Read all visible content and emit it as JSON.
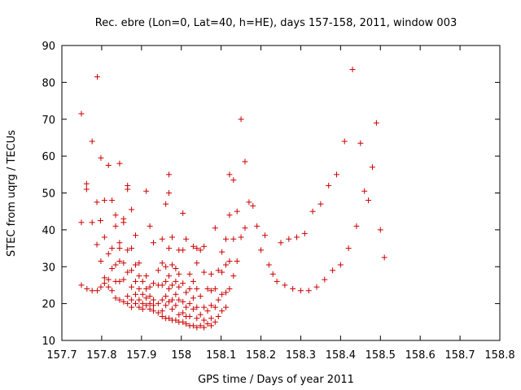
{
  "chart_data": {
    "type": "scatter",
    "title": "Rec. ebre (Lon=0, Lat=40, h=HE), days 157-158, 2011, window 003",
    "xlabel": "GPS time / Days of year 2011",
    "ylabel": "STEC from uqrg / TECUs",
    "xlim": [
      157.7,
      158.8
    ],
    "ylim": [
      10,
      90
    ],
    "xticks": [
      "157.7",
      "157.8",
      "157.9",
      "158",
      "158.1",
      "158.2",
      "158.3",
      "158.4",
      "158.5",
      "158.6",
      "158.7",
      "158.8"
    ],
    "yticks": [
      "10",
      "20",
      "30",
      "40",
      "50",
      "60",
      "70",
      "80",
      "90"
    ],
    "grid": false,
    "marker": "+",
    "marker_color": "#cc0000",
    "points": [
      [
        157.749,
        71.5
      ],
      [
        157.749,
        42.0
      ],
      [
        157.749,
        25.0
      ],
      [
        157.762,
        52.5
      ],
      [
        157.762,
        51.0
      ],
      [
        157.763,
        24.0
      ],
      [
        157.776,
        64.0
      ],
      [
        157.776,
        42.0
      ],
      [
        157.776,
        23.5
      ],
      [
        157.789,
        81.5
      ],
      [
        157.788,
        47.5
      ],
      [
        157.788,
        36.0
      ],
      [
        157.789,
        23.5
      ],
      [
        157.798,
        59.5
      ],
      [
        157.797,
        42.5
      ],
      [
        157.798,
        31.5
      ],
      [
        157.798,
        24.5
      ],
      [
        157.807,
        48.0
      ],
      [
        157.807,
        38.0
      ],
      [
        157.807,
        27.0
      ],
      [
        157.807,
        25.5
      ],
      [
        157.817,
        57.5
      ],
      [
        157.817,
        33.5
      ],
      [
        157.817,
        26.5
      ],
      [
        157.817,
        24.5
      ],
      [
        157.826,
        48.0
      ],
      [
        157.826,
        35.0
      ],
      [
        157.826,
        29.5
      ],
      [
        157.826,
        23.5
      ],
      [
        157.835,
        44.0
      ],
      [
        157.835,
        41.0
      ],
      [
        157.835,
        30.5
      ],
      [
        157.835,
        26.0
      ],
      [
        157.835,
        21.5
      ],
      [
        157.845,
        58.0
      ],
      [
        157.845,
        36.5
      ],
      [
        157.845,
        35.0
      ],
      [
        157.845,
        31.5
      ],
      [
        157.845,
        26.0
      ],
      [
        157.845,
        21.0
      ],
      [
        157.855,
        43.0
      ],
      [
        157.855,
        42.0
      ],
      [
        157.855,
        31.0
      ],
      [
        157.855,
        26.5
      ],
      [
        157.855,
        20.5
      ],
      [
        157.865,
        52.0
      ],
      [
        157.865,
        51.0
      ],
      [
        157.865,
        34.5
      ],
      [
        157.865,
        28.5
      ],
      [
        157.865,
        22.0
      ],
      [
        157.865,
        20.0
      ],
      [
        157.875,
        45.5
      ],
      [
        157.875,
        35.0
      ],
      [
        157.875,
        29.0
      ],
      [
        157.875,
        24.5
      ],
      [
        157.875,
        21.0
      ],
      [
        157.875,
        19.0
      ],
      [
        157.885,
        38.5
      ],
      [
        157.885,
        30.5
      ],
      [
        157.885,
        26.0
      ],
      [
        157.885,
        22.5
      ],
      [
        157.885,
        20.0
      ],
      [
        157.894,
        31.0
      ],
      [
        157.894,
        27.5
      ],
      [
        157.894,
        24.0
      ],
      [
        157.894,
        21.0
      ],
      [
        157.894,
        19.0
      ],
      [
        157.903,
        26.0
      ],
      [
        157.903,
        22.5
      ],
      [
        157.903,
        20.0
      ],
      [
        157.903,
        18.5
      ],
      [
        157.912,
        50.5
      ],
      [
        157.912,
        27.5
      ],
      [
        157.912,
        24.0
      ],
      [
        157.912,
        21.5
      ],
      [
        157.912,
        19.5
      ],
      [
        157.921,
        41.0
      ],
      [
        157.921,
        24.5
      ],
      [
        157.921,
        22.0
      ],
      [
        157.921,
        20.0
      ],
      [
        157.921,
        18.5
      ],
      [
        157.93,
        36.5
      ],
      [
        157.93,
        25.5
      ],
      [
        157.93,
        21.0
      ],
      [
        157.93,
        19.5
      ],
      [
        157.93,
        18.0
      ],
      [
        157.942,
        29.0
      ],
      [
        157.942,
        25.0
      ],
      [
        157.942,
        20.0
      ],
      [
        157.942,
        17.5
      ],
      [
        157.952,
        37.5
      ],
      [
        157.952,
        31.0
      ],
      [
        157.952,
        25.0
      ],
      [
        157.952,
        21.0
      ],
      [
        157.952,
        18.0
      ],
      [
        157.952,
        16.5
      ],
      [
        157.961,
        47.0
      ],
      [
        157.961,
        30.0
      ],
      [
        157.961,
        26.0
      ],
      [
        157.961,
        22.0
      ],
      [
        157.961,
        19.5
      ],
      [
        157.961,
        16.0
      ],
      [
        157.969,
        55.0
      ],
      [
        157.969,
        50.0
      ],
      [
        157.969,
        35.0
      ],
      [
        157.969,
        27.5
      ],
      [
        157.969,
        24.0
      ],
      [
        157.969,
        20.5
      ],
      [
        157.969,
        16.0
      ],
      [
        157.977,
        38.0
      ],
      [
        157.977,
        30.5
      ],
      [
        157.977,
        25.0
      ],
      [
        157.977,
        21.0
      ],
      [
        157.977,
        18.5
      ],
      [
        157.977,
        15.5
      ],
      [
        157.986,
        29.5
      ],
      [
        157.986,
        26.0
      ],
      [
        157.986,
        22.5
      ],
      [
        157.986,
        19.5
      ],
      [
        157.986,
        15.5
      ],
      [
        157.994,
        34.5
      ],
      [
        157.994,
        28.0
      ],
      [
        157.994,
        24.5
      ],
      [
        157.994,
        21.0
      ],
      [
        157.994,
        17.0
      ],
      [
        157.994,
        15.0
      ],
      [
        158.004,
        44.5
      ],
      [
        158.004,
        34.5
      ],
      [
        158.004,
        25.5
      ],
      [
        158.004,
        20.5
      ],
      [
        158.004,
        17.5
      ],
      [
        158.004,
        15.0
      ],
      [
        158.012,
        37.5
      ],
      [
        158.012,
        23.0
      ],
      [
        158.012,
        19.0
      ],
      [
        158.012,
        16.5
      ],
      [
        158.012,
        14.5
      ],
      [
        158.021,
        28.0
      ],
      [
        158.021,
        24.0
      ],
      [
        158.021,
        20.0
      ],
      [
        158.021,
        16.5
      ],
      [
        158.021,
        14.0
      ],
      [
        158.03,
        35.5
      ],
      [
        158.03,
        26.0
      ],
      [
        158.03,
        21.5
      ],
      [
        158.03,
        18.5
      ],
      [
        158.03,
        14.0
      ],
      [
        158.039,
        35.0
      ],
      [
        158.039,
        31.0
      ],
      [
        158.039,
        24.0
      ],
      [
        158.039,
        19.0
      ],
      [
        158.039,
        16.0
      ],
      [
        158.039,
        13.5
      ],
      [
        158.048,
        34.5
      ],
      [
        158.048,
        22.0
      ],
      [
        158.048,
        17.0
      ],
      [
        158.048,
        14.0
      ],
      [
        158.057,
        35.5
      ],
      [
        158.057,
        28.5
      ],
      [
        158.057,
        19.0
      ],
      [
        158.057,
        15.5
      ],
      [
        158.057,
        13.5
      ],
      [
        158.066,
        24.0
      ],
      [
        158.066,
        18.0
      ],
      [
        158.066,
        14.5
      ],
      [
        158.075,
        28.0
      ],
      [
        158.075,
        23.5
      ],
      [
        158.075,
        19.5
      ],
      [
        158.075,
        16.0
      ],
      [
        158.075,
        14.0
      ],
      [
        158.085,
        40.5
      ],
      [
        158.085,
        24.0
      ],
      [
        158.085,
        19.0
      ],
      [
        158.085,
        15.0
      ],
      [
        158.093,
        29.0
      ],
      [
        158.093,
        21.0
      ],
      [
        158.093,
        16.5
      ],
      [
        158.102,
        34.0
      ],
      [
        158.102,
        28.5
      ],
      [
        158.102,
        22.5
      ],
      [
        158.102,
        18.0
      ],
      [
        158.112,
        37.5
      ],
      [
        158.112,
        30.5
      ],
      [
        158.112,
        23.0
      ],
      [
        158.112,
        19.0
      ],
      [
        158.121,
        55.0
      ],
      [
        158.121,
        44.0
      ],
      [
        158.121,
        31.5
      ],
      [
        158.121,
        24.0
      ],
      [
        158.131,
        53.5
      ],
      [
        158.131,
        37.5
      ],
      [
        158.131,
        27.5
      ],
      [
        158.14,
        45.0
      ],
      [
        158.14,
        31.5
      ],
      [
        158.15,
        70.0
      ],
      [
        158.15,
        38.0
      ],
      [
        158.16,
        58.5
      ],
      [
        158.16,
        40.5
      ],
      [
        158.17,
        47.5
      ],
      [
        158.18,
        46.5
      ],
      [
        158.19,
        41.0
      ],
      [
        158.2,
        34.5
      ],
      [
        158.21,
        38.5
      ],
      [
        158.22,
        30.5
      ],
      [
        158.23,
        28.0
      ],
      [
        158.24,
        26.0
      ],
      [
        158.25,
        36.5
      ],
      [
        158.26,
        25.0
      ],
      [
        158.27,
        37.5
      ],
      [
        158.28,
        24.0
      ],
      [
        158.29,
        38.0
      ],
      [
        158.3,
        23.5
      ],
      [
        158.31,
        39.0
      ],
      [
        158.32,
        23.5
      ],
      [
        158.33,
        45.0
      ],
      [
        158.34,
        24.5
      ],
      [
        158.35,
        47.0
      ],
      [
        158.36,
        26.5
      ],
      [
        158.37,
        52.0
      ],
      [
        158.38,
        29.0
      ],
      [
        158.39,
        55.0
      ],
      [
        158.4,
        30.5
      ],
      [
        158.41,
        64.0
      ],
      [
        158.42,
        35.0
      ],
      [
        158.43,
        83.5
      ],
      [
        158.44,
        41.0
      ],
      [
        158.45,
        63.5
      ],
      [
        158.46,
        50.5
      ],
      [
        158.47,
        48.0
      ],
      [
        158.48,
        57.0
      ],
      [
        158.49,
        69.0
      ],
      [
        158.5,
        40.0
      ],
      [
        158.51,
        32.5
      ]
    ]
  }
}
